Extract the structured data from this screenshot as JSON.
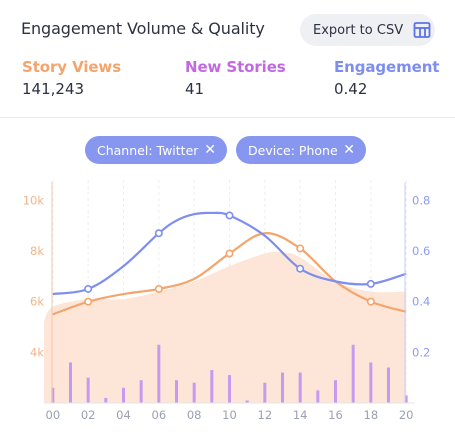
{
  "header": {
    "title": "Engagement Volume & Quality",
    "export_label": "Export to CSV",
    "export_icon": "table-icon"
  },
  "metrics": [
    {
      "label": "Story Views",
      "value": "141,243",
      "color": "#f5a46b"
    },
    {
      "label": "New Stories",
      "value": "41",
      "color": "#c268e3"
    },
    {
      "label": "Engagement",
      "value": "0.42",
      "color": "#7e8ef0"
    }
  ],
  "filters": [
    {
      "label": "Channel: Twitter",
      "remove_icon": "close-icon"
    },
    {
      "label": "Device: Phone",
      "remove_icon": "close-icon"
    }
  ],
  "chart_data": {
    "type": "line",
    "x_ticks": [
      "00",
      "02",
      "04",
      "06",
      "08",
      "10",
      "12",
      "14",
      "16",
      "18",
      "20"
    ],
    "x_range": [
      -0.5,
      20.5
    ],
    "y_left_ticks": [
      "10k",
      "8k",
      "6k",
      "4k"
    ],
    "y_left_range": [
      2000,
      10800
    ],
    "y_right_ticks": [
      "0.8",
      "0.6",
      "0.4",
      "0.2"
    ],
    "y_right_range": [
      0,
      0.88
    ],
    "series": [
      {
        "axis": "left",
        "style": "area",
        "color": "#fde3d3",
        "x": [
          -0.5,
          0,
          2,
          4,
          6,
          8,
          10,
          12,
          13,
          14,
          16,
          18,
          20
        ],
        "y": [
          5200,
          5800,
          6100,
          6100,
          6400,
          6800,
          7400,
          7900,
          7950,
          7750,
          6800,
          6400,
          6400
        ]
      },
      {
        "axis": "left",
        "style": "line",
        "color": "#f5a46b",
        "x": [
          0,
          2,
          4,
          6,
          8,
          10,
          12,
          14,
          16,
          18,
          20
        ],
        "y": [
          5500,
          6000,
          6300,
          6500,
          6900,
          7900,
          8700,
          8100,
          6800,
          6000,
          5600
        ],
        "markers_at": [
          2,
          6,
          10,
          14,
          18
        ]
      },
      {
        "axis": "right",
        "style": "line",
        "color": "#7e8ef0",
        "x": [
          0,
          2,
          4,
          6,
          7,
          8,
          9,
          10,
          12,
          14,
          16,
          18,
          20
        ],
        "y": [
          0.43,
          0.45,
          0.54,
          0.67,
          0.72,
          0.745,
          0.75,
          0.74,
          0.66,
          0.53,
          0.48,
          0.47,
          0.51
        ],
        "markers_at": [
          2,
          6,
          10,
          14,
          18
        ]
      },
      {
        "axis": "left",
        "style": "bar",
        "color": "#c69af0",
        "x": [
          0,
          1,
          2,
          3,
          4,
          5,
          6,
          7,
          8,
          9,
          10,
          11,
          12,
          13,
          14,
          15,
          16,
          17,
          18,
          19,
          20
        ],
        "y": [
          2600,
          3600,
          3000,
          2200,
          2600,
          2900,
          4300,
          2900,
          2800,
          3300,
          3100,
          2100,
          2800,
          3200,
          3200,
          2500,
          2900,
          4300,
          3600,
          3400,
          2300
        ]
      }
    ],
    "grid": "vertical-dashed"
  }
}
